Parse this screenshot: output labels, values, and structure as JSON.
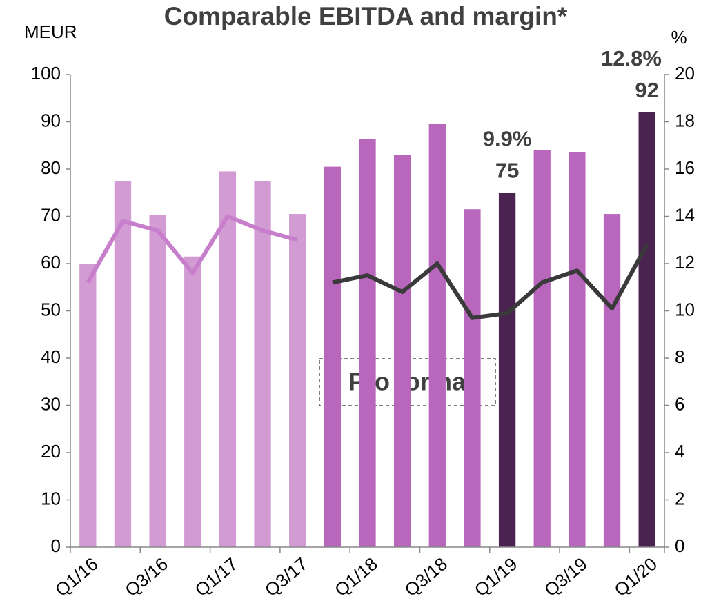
{
  "chart_data": {
    "type": "bar",
    "title": "Comparable EBITDA and margin*",
    "y_label": "MEUR",
    "y2_label": "%",
    "annotation": "Pro forma",
    "categories": [
      "Q1/16",
      null,
      "Q3/16",
      null,
      "Q1/17",
      null,
      "Q3/17",
      null,
      "Q1/18",
      null,
      "Q3/18",
      null,
      "Q1/19",
      null,
      "Q3/19",
      null,
      "Q1/20"
    ],
    "series": [
      {
        "type": "bar",
        "values": [
          60,
          77.5,
          70.3,
          61.5,
          79.5,
          77.5,
          70.5,
          80.5,
          86.3,
          83,
          89.5,
          71.5,
          75,
          84,
          83.5,
          70.5,
          92
        ],
        "value_labels": [
          null,
          null,
          null,
          null,
          null,
          null,
          null,
          null,
          null,
          null,
          null,
          null,
          "75",
          null,
          null,
          null,
          "92"
        ],
        "colors": [
          "#d39bd4",
          "#d39bd4",
          "#d39bd4",
          "#d39bd4",
          "#d39bd4",
          "#d39bd4",
          "#d39bd4",
          "#b967bd",
          "#b967bd",
          "#b967bd",
          "#b967bd",
          "#b967bd",
          "#4a2350",
          "#b967bd",
          "#b967bd",
          "#b967bd",
          "#4a2350"
        ]
      },
      {
        "type": "line",
        "axis": "y2",
        "color": "#c77fcc",
        "values": [
          11.2,
          13.8,
          13.4,
          11.6,
          14.0,
          13.4,
          13.0,
          null,
          null,
          null,
          null,
          null,
          null,
          null,
          null,
          null,
          null
        ]
      },
      {
        "type": "line",
        "axis": "y2",
        "color": "#3a3a3a",
        "values": [
          null,
          null,
          null,
          null,
          null,
          null,
          null,
          11.2,
          11.5,
          10.8,
          12.0,
          9.7,
          9.9,
          11.2,
          11.7,
          10.1,
          12.8
        ],
        "value_labels": [
          null,
          null,
          null,
          null,
          null,
          null,
          null,
          null,
          null,
          null,
          null,
          null,
          "9.9%",
          null,
          null,
          null,
          "12.8%"
        ]
      }
    ],
    "ylim": [
      0,
      100
    ],
    "yticks": [
      0,
      10,
      20,
      30,
      40,
      50,
      60,
      70,
      80,
      90,
      100
    ],
    "y2lim": [
      0,
      20
    ],
    "y2ticks": [
      0,
      2,
      4,
      6,
      8,
      10,
      12,
      14,
      16,
      18,
      20
    ]
  }
}
